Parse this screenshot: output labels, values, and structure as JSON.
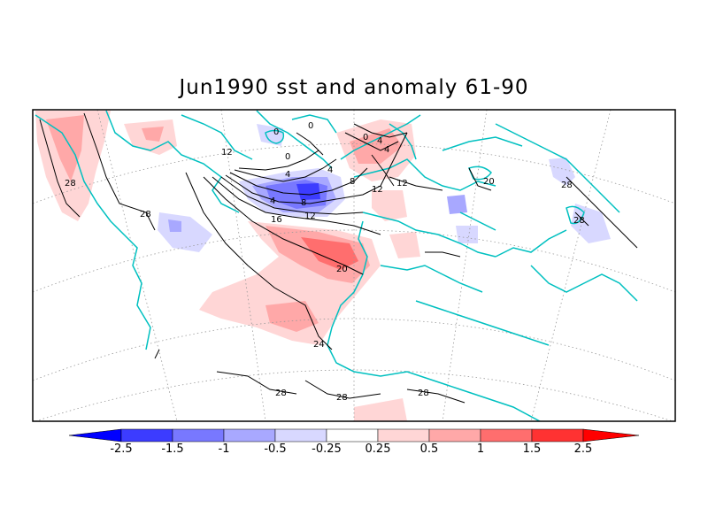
{
  "title": "Jun1990 sst and anomaly 61-90",
  "colors": {
    "coast": "#00c0c0",
    "contour": "#000000",
    "grid": "#999999"
  },
  "colorbar": {
    "labels": [
      "-2.5",
      "-1.5",
      "-1",
      "-0.5",
      "-0.25",
      "0.25",
      "0.5",
      "1",
      "1.5",
      "2.5"
    ],
    "colors": [
      "#0000ff",
      "#3c3cff",
      "#7878ff",
      "#a8a8ff",
      "#d8d8ff",
      "#ffffff",
      "#ffd6d6",
      "#ffa8a8",
      "#ff6e6e",
      "#ff3232",
      "#ff0000"
    ]
  },
  "contour_labels": [
    {
      "id": "c0a",
      "text": "0"
    },
    {
      "id": "c0b",
      "text": "0"
    },
    {
      "id": "c0c",
      "text": "0"
    },
    {
      "id": "c0d",
      "text": "0"
    },
    {
      "id": "c4a",
      "text": "4"
    },
    {
      "id": "c4b",
      "text": "4"
    },
    {
      "id": "c4c",
      "text": "4"
    },
    {
      "id": "c4d",
      "text": "4"
    },
    {
      "id": "c4e",
      "text": "4"
    },
    {
      "id": "c8a",
      "text": "8"
    },
    {
      "id": "c8b",
      "text": "8"
    },
    {
      "id": "c12a",
      "text": "12"
    },
    {
      "id": "c12b",
      "text": "12"
    },
    {
      "id": "c12c",
      "text": "12"
    },
    {
      "id": "c12d",
      "text": "12"
    },
    {
      "id": "c16a",
      "text": "16"
    },
    {
      "id": "c20a",
      "text": "20"
    },
    {
      "id": "c20b",
      "text": "20"
    },
    {
      "id": "c24a",
      "text": "24"
    },
    {
      "id": "c28a",
      "text": "28"
    },
    {
      "id": "c28b",
      "text": "28"
    },
    {
      "id": "c28c",
      "text": "28"
    },
    {
      "id": "c28d",
      "text": "28"
    },
    {
      "id": "c28e",
      "text": "28"
    },
    {
      "id": "c28f",
      "text": "28"
    },
    {
      "id": "c28g",
      "text": "28"
    }
  ]
}
